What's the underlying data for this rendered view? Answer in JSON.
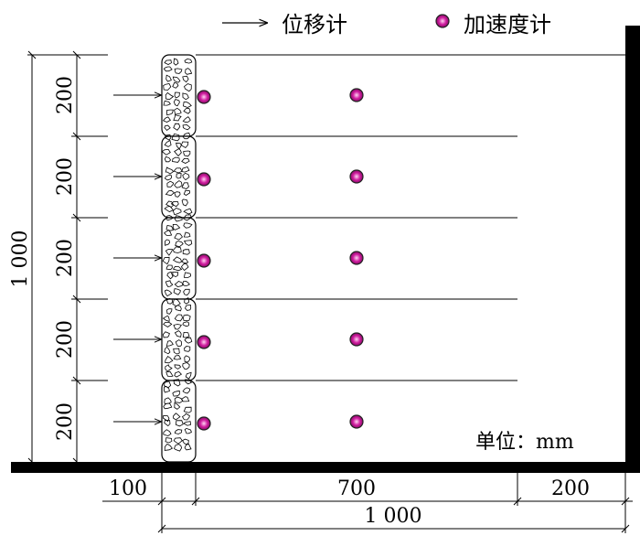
{
  "legend": {
    "displacement_label": "位移计",
    "accelerometer_label": "加速度计"
  },
  "dimensions": {
    "layer_heights": [
      "200",
      "200",
      "200",
      "200",
      "200"
    ],
    "total_height": "1 000",
    "wall_width": "100",
    "backfill_length": "700",
    "right_gap": "200",
    "total_width": "1 000"
  },
  "units_note": "单位：mm",
  "colors": {
    "accelerometer_fill": "#d01fa0",
    "accelerometer_outline": "#222222",
    "lines": "#000000",
    "background": "#ffffff"
  },
  "sensors": {
    "layers": 5,
    "displacement_gauges_per_layer": 1,
    "accelerometers_per_layer": 2
  }
}
